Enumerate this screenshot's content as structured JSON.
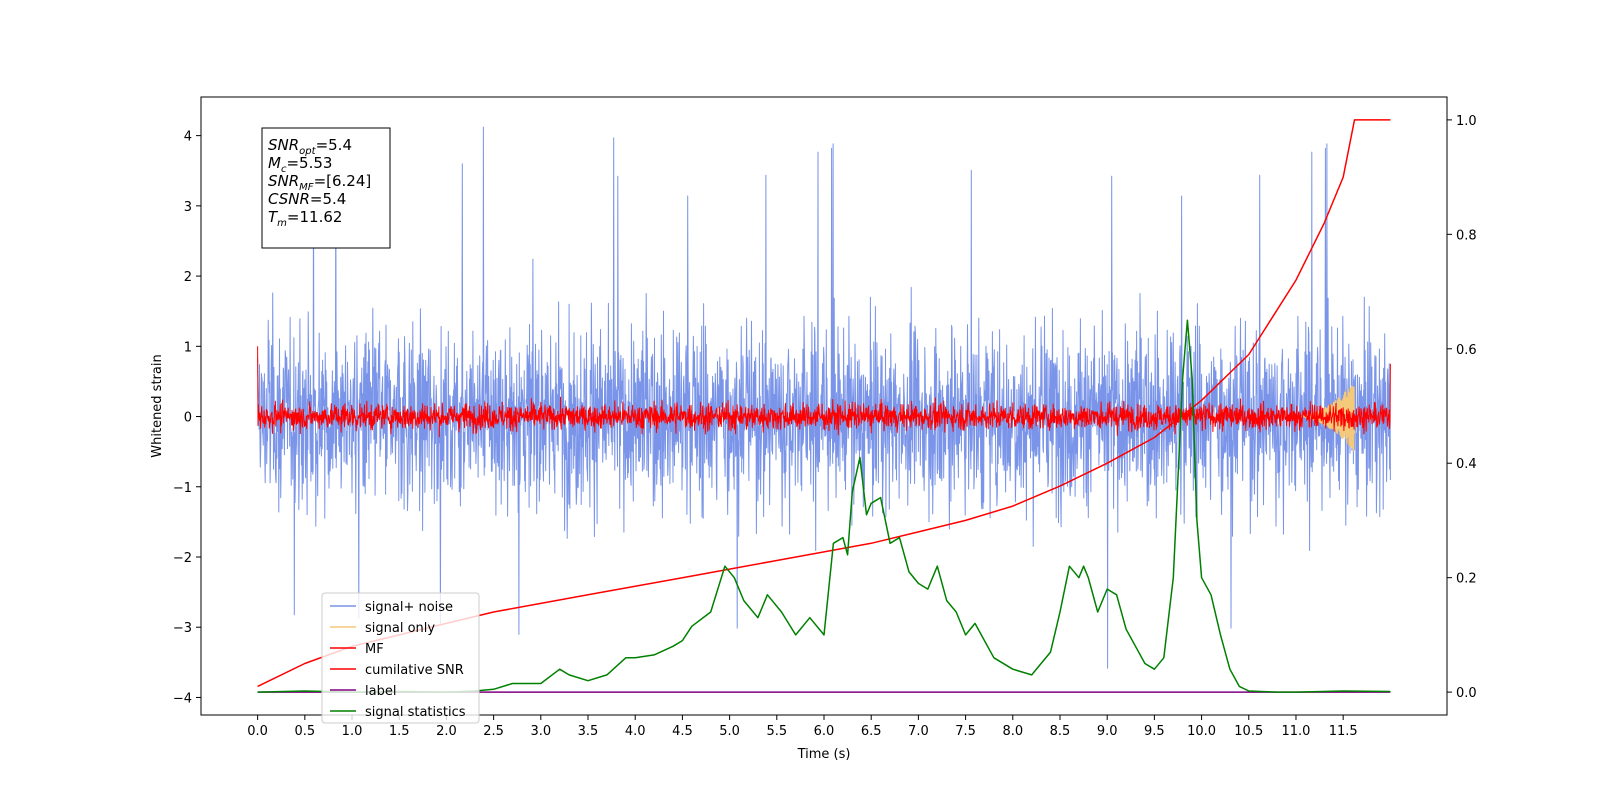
{
  "chart_data": {
    "type": "line",
    "title": "",
    "xlabel": "Time (s)",
    "ylabel": "Whitened strain",
    "xlim": [
      -0.6,
      12.6
    ],
    "ylim": [
      -4.25,
      4.55
    ],
    "y2lim": [
      -0.04,
      1.04
    ],
    "x_ticks": [
      "0.0",
      "0.5",
      "1.0",
      "1.5",
      "2.0",
      "2.5",
      "3.0",
      "3.5",
      "4.0",
      "4.5",
      "5.0",
      "5.5",
      "6.0",
      "6.5",
      "7.0",
      "7.5",
      "8.0",
      "8.5",
      "9.0",
      "9.5",
      "10.0",
      "10.5",
      "11.0",
      "11.5"
    ],
    "y_ticks": [
      "−4",
      "−3",
      "−2",
      "−1",
      "0",
      "1",
      "2",
      "3",
      "4"
    ],
    "y2_ticks": [
      "0.0",
      "0.2",
      "0.4",
      "0.6",
      "0.8",
      "1.0"
    ],
    "grid": false,
    "legend_position": "lower-left",
    "series": [
      {
        "name": "signal+ noise",
        "color": "#7994e8",
        "axis": "left",
        "kind": "noise",
        "x_range": [
          0,
          12
        ],
        "amplitude": 0.9,
        "peak_max": 4.15,
        "peak_min": -3.75
      },
      {
        "name": "signal only",
        "color": "#f5c97a",
        "axis": "left",
        "kind": "chirp",
        "x_range": [
          11.0,
          11.62
        ],
        "amplitude_max": 0.5
      },
      {
        "name": "MF",
        "color": "#ff0000",
        "axis": "left",
        "kind": "noise",
        "x_range": [
          0,
          12
        ],
        "amplitude": 0.13,
        "start_value": 1.0,
        "end_value": 0.75
      },
      {
        "name": "cumilative SNR",
        "color": "#ff0000",
        "axis": "right",
        "x": [
          0,
          0.5,
          1,
          1.5,
          2,
          2.5,
          3,
          3.5,
          4,
          4.5,
          5,
          5.5,
          6,
          6.5,
          7,
          7.5,
          8,
          8.5,
          9,
          9.5,
          10,
          10.5,
          11,
          11.3,
          11.5,
          11.62,
          12.0
        ],
        "values": [
          0.01,
          0.05,
          0.08,
          0.1,
          0.12,
          0.14,
          0.155,
          0.17,
          0.185,
          0.2,
          0.215,
          0.23,
          0.245,
          0.26,
          0.28,
          0.3,
          0.325,
          0.36,
          0.4,
          0.445,
          0.51,
          0.59,
          0.72,
          0.82,
          0.9,
          1.0,
          1.0
        ]
      },
      {
        "name": "label",
        "color": "#800080",
        "axis": "right",
        "x": [
          0,
          12
        ],
        "values": [
          0.0,
          0.0
        ]
      },
      {
        "name": "signal statistics",
        "color": "#008000",
        "axis": "right",
        "x": [
          0,
          0.5,
          1,
          1.5,
          2,
          2.3,
          2.5,
          2.7,
          3.0,
          3.2,
          3.3,
          3.5,
          3.7,
          3.9,
          4.0,
          4.2,
          4.4,
          4.5,
          4.6,
          4.8,
          4.95,
          5.05,
          5.15,
          5.3,
          5.4,
          5.55,
          5.7,
          5.85,
          6.0,
          6.1,
          6.2,
          6.25,
          6.3,
          6.38,
          6.45,
          6.5,
          6.6,
          6.7,
          6.8,
          6.9,
          7.0,
          7.1,
          7.2,
          7.3,
          7.4,
          7.5,
          7.6,
          7.8,
          8.0,
          8.2,
          8.4,
          8.5,
          8.6,
          8.7,
          8.75,
          8.8,
          8.9,
          9.0,
          9.1,
          9.2,
          9.3,
          9.4,
          9.5,
          9.6,
          9.7,
          9.8,
          9.85,
          9.9,
          9.95,
          10.0,
          10.1,
          10.2,
          10.3,
          10.4,
          10.5,
          10.8,
          11.0,
          11.5,
          12.0
        ],
        "values": [
          0.0,
          0.002,
          0.0,
          0.001,
          0.0,
          0.002,
          0.005,
          0.015,
          0.015,
          0.04,
          0.03,
          0.02,
          0.03,
          0.06,
          0.06,
          0.065,
          0.08,
          0.09,
          0.115,
          0.14,
          0.22,
          0.2,
          0.16,
          0.13,
          0.17,
          0.14,
          0.1,
          0.13,
          0.1,
          0.26,
          0.27,
          0.24,
          0.35,
          0.41,
          0.31,
          0.33,
          0.34,
          0.26,
          0.27,
          0.21,
          0.19,
          0.18,
          0.22,
          0.16,
          0.14,
          0.1,
          0.12,
          0.06,
          0.04,
          0.03,
          0.07,
          0.14,
          0.22,
          0.2,
          0.22,
          0.2,
          0.14,
          0.18,
          0.17,
          0.11,
          0.08,
          0.05,
          0.04,
          0.06,
          0.2,
          0.55,
          0.65,
          0.55,
          0.3,
          0.2,
          0.17,
          0.1,
          0.04,
          0.01,
          0.002,
          0.0,
          0.0,
          0.002,
          0.001
        ]
      }
    ],
    "annotation": [
      {
        "main": "SNR",
        "sub": "opt",
        "rest": "=5.4"
      },
      {
        "main": "M",
        "sub": "c",
        "rest": "=5.53"
      },
      {
        "main": "SNR",
        "sub": "MF",
        "rest": "=[6.24]"
      },
      {
        "main": "CSNR",
        "sub": "",
        "rest": "=5.4"
      },
      {
        "main": "T",
        "sub": "m",
        "rest": "=11.62"
      }
    ]
  }
}
